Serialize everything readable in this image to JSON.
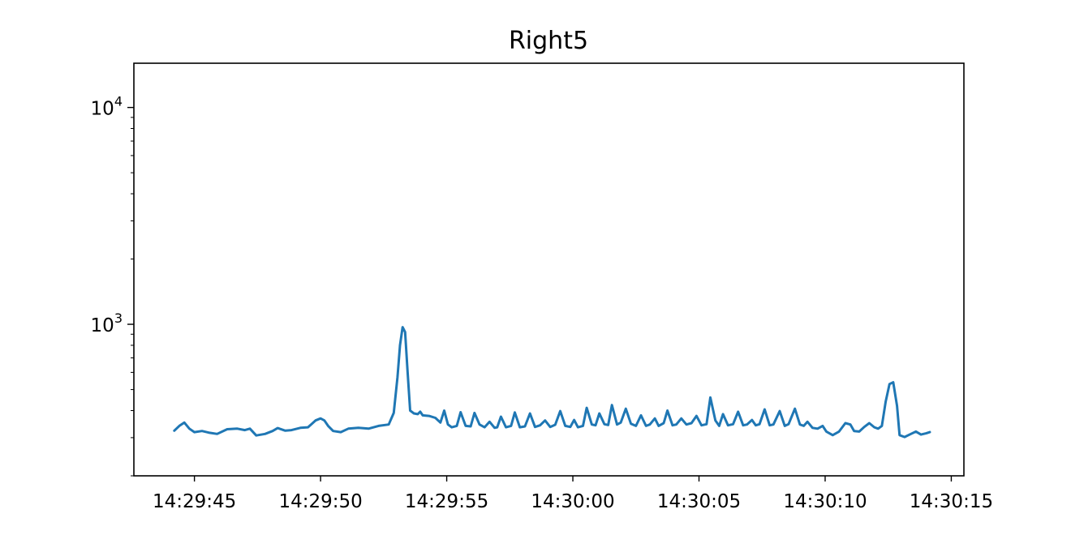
{
  "chart_data": {
    "type": "line",
    "title": "Right5",
    "xlabel": "",
    "ylabel": "",
    "yscale": "log",
    "x_unit": "time (HH:MM:SS)",
    "xlim": [
      "14:29:42.6",
      "14:30:15.5"
    ],
    "ylim": [
      200,
      16000
    ],
    "grid": false,
    "x_ticks": [
      "14:29:45",
      "14:29:50",
      "14:29:55",
      "14:30:00",
      "14:30:05",
      "14:30:10",
      "14:30:15"
    ],
    "y_ticks": [
      {
        "value": 1000,
        "base": "10",
        "exp": "3"
      },
      {
        "value": 10000,
        "base": "10",
        "exp": "4"
      }
    ],
    "series": [
      {
        "color": "#1f77b4",
        "points": [
          [
            "14:29:44.20",
            323
          ],
          [
            "14:29:44.40",
            340
          ],
          [
            "14:29:44.60",
            352
          ],
          [
            "14:29:44.80",
            330
          ],
          [
            "14:29:45.00",
            318
          ],
          [
            "14:29:45.30",
            322
          ],
          [
            "14:29:45.60",
            316
          ],
          [
            "14:29:45.90",
            312
          ],
          [
            "14:29:46.30",
            328
          ],
          [
            "14:29:46.70",
            330
          ],
          [
            "14:29:47.00",
            325
          ],
          [
            "14:29:47.20",
            330
          ],
          [
            "14:29:47.45",
            307
          ],
          [
            "14:29:47.80",
            312
          ],
          [
            "14:29:48.10",
            322
          ],
          [
            "14:29:48.30",
            332
          ],
          [
            "14:29:48.60",
            323
          ],
          [
            "14:29:48.85",
            325
          ],
          [
            "14:29:49.20",
            333
          ],
          [
            "14:29:49.50",
            335
          ],
          [
            "14:29:49.80",
            360
          ],
          [
            "14:29:50.00",
            368
          ],
          [
            "14:29:50.15",
            360
          ],
          [
            "14:29:50.30",
            340
          ],
          [
            "14:29:50.50",
            322
          ],
          [
            "14:29:50.80",
            318
          ],
          [
            "14:29:51.10",
            330
          ],
          [
            "14:29:51.50",
            333
          ],
          [
            "14:29:51.90",
            330
          ],
          [
            "14:29:52.30",
            340
          ],
          [
            "14:29:52.70",
            345
          ],
          [
            "14:29:52.90",
            390
          ],
          [
            "14:29:53.05",
            570
          ],
          [
            "14:29:53.15",
            800
          ],
          [
            "14:29:53.25",
            970
          ],
          [
            "14:29:53.35",
            920
          ],
          [
            "14:29:53.45",
            600
          ],
          [
            "14:29:53.55",
            400
          ],
          [
            "14:29:53.70",
            388
          ],
          [
            "14:29:53.85",
            385
          ],
          [
            "14:29:53.95",
            395
          ],
          [
            "14:29:54.05",
            380
          ],
          [
            "14:29:54.30",
            378
          ],
          [
            "14:29:54.55",
            370
          ],
          [
            "14:29:54.75",
            352
          ],
          [
            "14:29:54.90",
            400
          ],
          [
            "14:29:55.05",
            345
          ],
          [
            "14:29:55.20",
            335
          ],
          [
            "14:29:55.40",
            340
          ],
          [
            "14:29:55.55",
            393
          ],
          [
            "14:29:55.75",
            340
          ],
          [
            "14:29:55.95",
            338
          ],
          [
            "14:29:56.10",
            390
          ],
          [
            "14:29:56.30",
            345
          ],
          [
            "14:29:56.50",
            335
          ],
          [
            "14:29:56.70",
            355
          ],
          [
            "14:29:56.90",
            333
          ],
          [
            "14:29:57.00",
            335
          ],
          [
            "14:29:57.15",
            375
          ],
          [
            "14:29:57.35",
            335
          ],
          [
            "14:29:57.55",
            340
          ],
          [
            "14:29:57.70",
            392
          ],
          [
            "14:29:57.90",
            335
          ],
          [
            "14:29:58.10",
            338
          ],
          [
            "14:29:58.30",
            388
          ],
          [
            "14:29:58.50",
            336
          ],
          [
            "14:29:58.70",
            342
          ],
          [
            "14:29:58.90",
            360
          ],
          [
            "14:29:59.10",
            336
          ],
          [
            "14:29:59.30",
            344
          ],
          [
            "14:29:59.50",
            398
          ],
          [
            "14:29:59.70",
            340
          ],
          [
            "14:29:59.90",
            336
          ],
          [
            "14:30:00.05",
            362
          ],
          [
            "14:30:00.20",
            335
          ],
          [
            "14:30:00.40",
            340
          ],
          [
            "14:30:00.55",
            412
          ],
          [
            "14:30:00.75",
            345
          ],
          [
            "14:30:00.90",
            342
          ],
          [
            "14:30:01.05",
            388
          ],
          [
            "14:30:01.25",
            346
          ],
          [
            "14:30:01.40",
            343
          ],
          [
            "14:30:01.55",
            424
          ],
          [
            "14:30:01.75",
            345
          ],
          [
            "14:30:01.90",
            352
          ],
          [
            "14:30:02.10",
            408
          ],
          [
            "14:30:02.30",
            348
          ],
          [
            "14:30:02.50",
            340
          ],
          [
            "14:30:02.70",
            380
          ],
          [
            "14:30:02.90",
            340
          ],
          [
            "14:30:03.05",
            345
          ],
          [
            "14:30:03.25",
            368
          ],
          [
            "14:30:03.40",
            340
          ],
          [
            "14:30:03.60",
            350
          ],
          [
            "14:30:03.75",
            400
          ],
          [
            "14:30:03.95",
            342
          ],
          [
            "14:30:04.10",
            345
          ],
          [
            "14:30:04.30",
            368
          ],
          [
            "14:30:04.50",
            345
          ],
          [
            "14:30:04.70",
            350
          ],
          [
            "14:30:04.90",
            378
          ],
          [
            "14:30:05.10",
            342
          ],
          [
            "14:30:05.30",
            346
          ],
          [
            "14:30:05.45",
            460
          ],
          [
            "14:30:05.65",
            360
          ],
          [
            "14:30:05.80",
            340
          ],
          [
            "14:30:05.95",
            385
          ],
          [
            "14:30:06.15",
            342
          ],
          [
            "14:30:06.35",
            346
          ],
          [
            "14:30:06.55",
            395
          ],
          [
            "14:30:06.75",
            342
          ],
          [
            "14:30:06.90",
            345
          ],
          [
            "14:30:07.10",
            362
          ],
          [
            "14:30:07.25",
            342
          ],
          [
            "14:30:07.40",
            346
          ],
          [
            "14:30:07.60",
            405
          ],
          [
            "14:30:07.80",
            342
          ],
          [
            "14:30:07.95",
            345
          ],
          [
            "14:30:08.20",
            398
          ],
          [
            "14:30:08.40",
            340
          ],
          [
            "14:30:08.55",
            346
          ],
          [
            "14:30:08.80",
            408
          ],
          [
            "14:30:09.00",
            345
          ],
          [
            "14:30:09.15",
            340
          ],
          [
            "14:30:09.30",
            355
          ],
          [
            "14:30:09.50",
            333
          ],
          [
            "14:30:09.70",
            330
          ],
          [
            "14:30:09.90",
            340
          ],
          [
            "14:30:10.05",
            320
          ],
          [
            "14:30:10.30",
            308
          ],
          [
            "14:30:10.55",
            320
          ],
          [
            "14:30:10.80",
            350
          ],
          [
            "14:30:11.00",
            345
          ],
          [
            "14:30:11.15",
            322
          ],
          [
            "14:30:11.35",
            320
          ],
          [
            "14:30:11.55",
            336
          ],
          [
            "14:30:11.75",
            350
          ],
          [
            "14:30:11.95",
            335
          ],
          [
            "14:30:12.10",
            330
          ],
          [
            "14:30:12.25",
            340
          ],
          [
            "14:30:12.40",
            440
          ],
          [
            "14:30:12.55",
            530
          ],
          [
            "14:30:12.70",
            540
          ],
          [
            "14:30:12.85",
            420
          ],
          [
            "14:30:12.95",
            308
          ],
          [
            "14:30:13.15",
            302
          ],
          [
            "14:30:13.40",
            312
          ],
          [
            "14:30:13.60",
            320
          ],
          [
            "14:30:13.80",
            310
          ],
          [
            "14:30:14.00",
            314
          ],
          [
            "14:30:14.15",
            318
          ]
        ]
      }
    ]
  }
}
